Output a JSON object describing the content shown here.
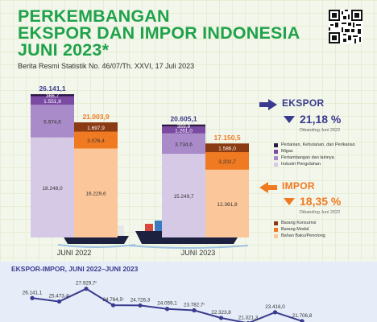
{
  "header": {
    "title_lines": [
      "PERKEMBANGAN",
      "EKSPOR DAN IMPOR INDONESIA",
      "JUNI 2023*"
    ],
    "subtitle": "Berita Resmi Statistik No. 46/07/Th. XXVI, 17 Juli 2023"
  },
  "colors": {
    "title": "#1fa24a",
    "accent_navy": "#3a3b8f",
    "export_pct": "#3a3b8f",
    "import_pct": "#f07a22"
  },
  "ekspor_panel": {
    "title": "EKSPOR",
    "change": "21,18 %",
    "note": "Dibanding Juni 2022",
    "legend": [
      {
        "label": "Pertanian, Kehutanan, dan Perikanan",
        "color": "#2e1a47"
      },
      {
        "label": "Migas",
        "color": "#7b4aa3"
      },
      {
        "label": "Pertambangan dan lainnya",
        "color": "#a98bc9"
      },
      {
        "label": "Industri Pengolahan",
        "color": "#d6c9e6"
      }
    ]
  },
  "impor_panel": {
    "title": "IMPOR",
    "change": "18,35 %",
    "note": "Dibanding Juni 2022",
    "legend": [
      {
        "label": "Barang Konsumsi",
        "color": "#8a3b12"
      },
      {
        "label": "Barang Modal",
        "color": "#f07a22"
      },
      {
        "label": "Bahan Baku/Penolong",
        "color": "#fbc79a"
      }
    ]
  },
  "chart_data": [
    {
      "type": "bar",
      "stacked": true,
      "categories": [
        "JUNI 2022",
        "JUNI 2023"
      ],
      "series_groups": [
        {
          "group": "EKSPOR",
          "totals": [
            "26.141,1",
            "20.605,1"
          ],
          "series": [
            {
              "name": "Industri Pengolahan",
              "values": [
                18248.0,
                15249.7
              ],
              "labels": [
                "18.248,0",
                "15.249,7"
              ],
              "color": "#d6c9e6"
            },
            {
              "name": "Pertambangan dan lainnya",
              "values": [
                5974.6,
                3734.6
              ],
              "labels": [
                "5.974,6",
                "3.734,6"
              ],
              "color": "#a98bc9"
            },
            {
              "name": "Migas",
              "values": [
                1551.8,
                1261.0
              ],
              "labels": [
                "1.551,8",
                "1.261,0"
              ],
              "color": "#7b4aa3"
            },
            {
              "name": "Pertanian, Kehutanan, dan Perikanan",
              "values": [
                366.7,
                359.8
              ],
              "labels": [
                "366,7",
                "359,8"
              ],
              "color": "#2e1a47"
            }
          ]
        },
        {
          "group": "IMPOR",
          "totals": [
            "21.003,9",
            "17.150,5"
          ],
          "series": [
            {
              "name": "Bahan Baku/Penolong",
              "values": [
                16229.6,
                12361.8
              ],
              "labels": [
                "16.229,6",
                "12.361,8"
              ],
              "color": "#fbc79a"
            },
            {
              "name": "Barang Modal",
              "values": [
                3076.4,
                3202.7
              ],
              "labels": [
                "3.076,4",
                "3.202,7"
              ],
              "color": "#f07a22"
            },
            {
              "name": "Barang Konsumsi",
              "values": [
                1697.9,
                1586.0
              ],
              "labels": [
                "1.697,9",
                "1.586,0"
              ],
              "color": "#8a3b12"
            }
          ]
        }
      ]
    },
    {
      "type": "line",
      "title": "EKSPOR-IMPOR, JUNI 2022–JUNI 2023",
      "series": [
        {
          "name": "EKSPOR",
          "color": "#3a3b8f",
          "values": [
            26141.1,
            25473.4,
            27929.7,
            24764.5,
            24726.3,
            24059.1,
            23782.7,
            22323.8,
            21321.3,
            23416.0,
            21706.8
          ],
          "labels": [
            "26.141,1",
            "25.473,4",
            "27.929,7",
            "24.764,5",
            "24.726,3",
            "24.059,1",
            "23.782,7",
            "22.323,8",
            "21.321,3",
            "23.416,0",
            "21.706,8"
          ],
          "label_flags": [
            "",
            "r",
            "r",
            "r",
            "",
            "",
            "r",
            "",
            "",
            "",
            ""
          ]
        }
      ]
    }
  ]
}
